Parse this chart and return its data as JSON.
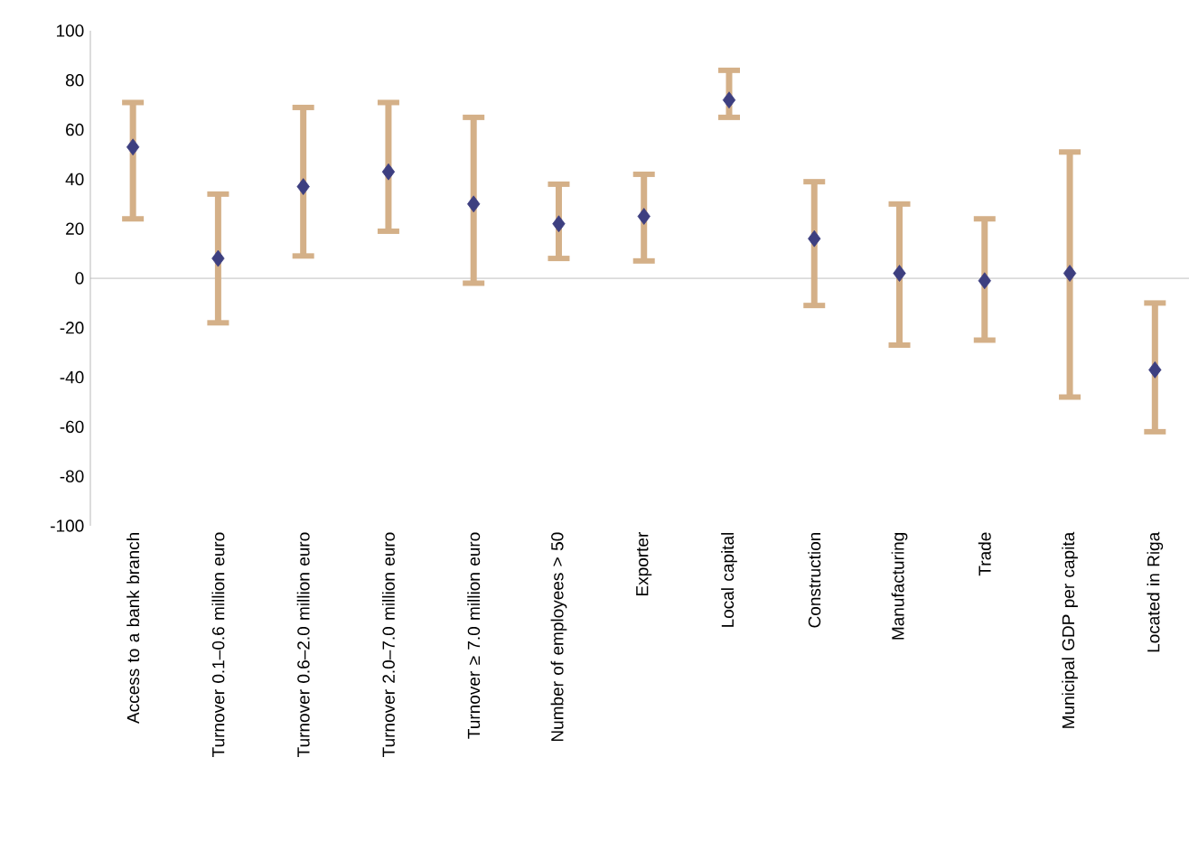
{
  "chart_data": {
    "type": "scatter",
    "categories": [
      "Access to a bank branch",
      "Turnover 0.1–0.6 million euro",
      "Turnover 0.6–2.0 million euro",
      "Turnover 2.0–7.0 million euro",
      "Turnover ≥ 7.0 million euro",
      "Number of employees > 50",
      "Exporter",
      "Local capital",
      "Construction",
      "Manufacturing",
      "Trade",
      "Municipal GDP per capita",
      "Located in Riga"
    ],
    "series": [
      {
        "color": "#3d3f80",
        "values": [
          53,
          8,
          37,
          43,
          30,
          22,
          25,
          72,
          16,
          2,
          -1,
          2,
          -37
        ],
        "errors": [
          [
            24,
            71
          ],
          [
            -18,
            34
          ],
          [
            9,
            69
          ],
          [
            19,
            71
          ],
          [
            -2,
            65
          ],
          [
            8,
            38
          ],
          [
            7,
            42
          ],
          [
            65,
            84
          ],
          [
            -11,
            39
          ],
          [
            -27,
            30
          ],
          [
            -25,
            24
          ],
          [
            -48,
            51
          ],
          [
            -62,
            -10
          ]
        ]
      }
    ],
    "marker": "diamond",
    "ylim": [
      -100,
      100
    ],
    "yticks": [
      -100,
      -80,
      -60,
      -40,
      -20,
      0,
      20,
      40,
      60,
      80,
      100
    ],
    "legend": false
  }
}
